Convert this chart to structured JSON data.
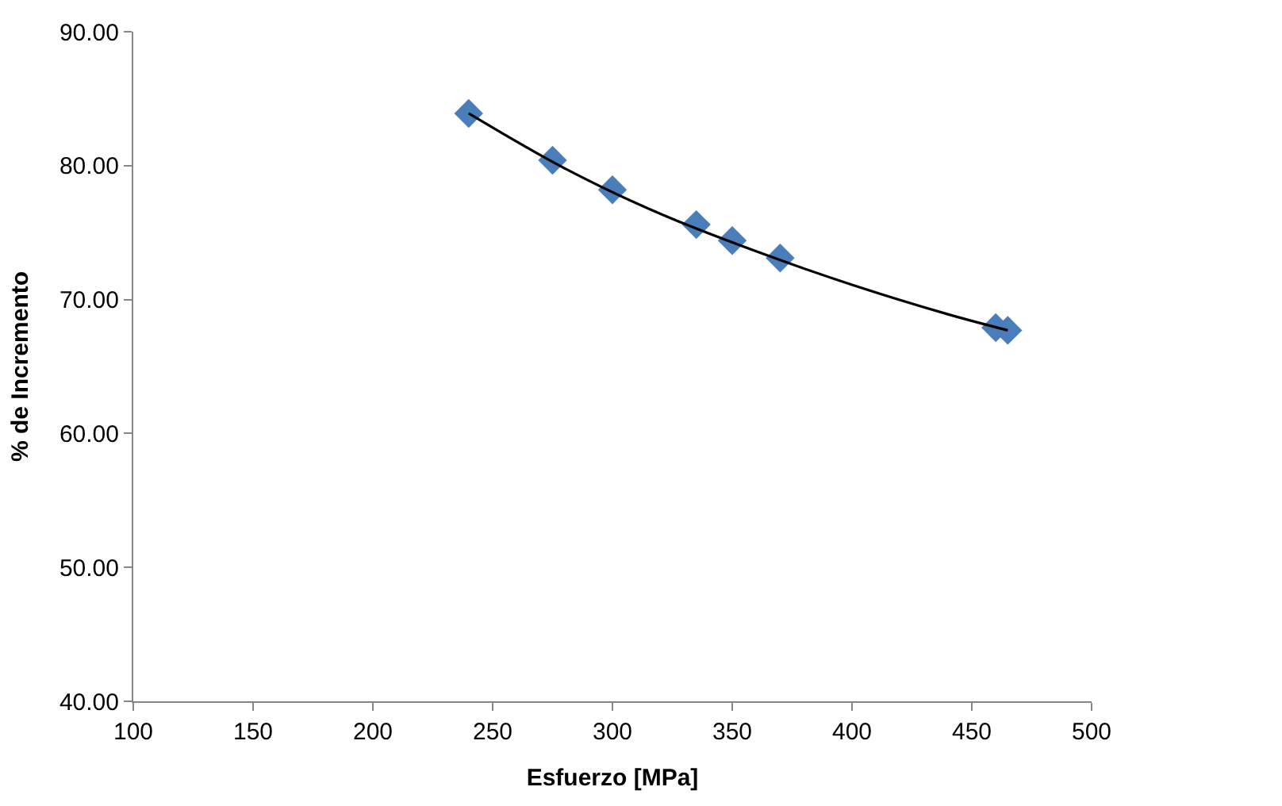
{
  "chart_data": {
    "type": "scatter",
    "xlabel": "Esfuerzo [MPa]",
    "ylabel": "% de Incremento",
    "xlim": [
      100,
      500
    ],
    "xticks": [
      100,
      150,
      200,
      250,
      300,
      350,
      400,
      450,
      500
    ],
    "ylim": [
      40,
      90
    ],
    "yticks": [
      {
        "value": 40,
        "label": "40.00"
      },
      {
        "value": 50,
        "label": "50.00"
      },
      {
        "value": 60,
        "label": "60.00"
      },
      {
        "value": 70,
        "label": "70.00"
      },
      {
        "value": 80,
        "label": "80.00"
      },
      {
        "value": 90,
        "label": "90.00"
      }
    ],
    "series": [
      {
        "color": "#4a7ebb",
        "marker": "diamond",
        "x": [
          240,
          275,
          300,
          335,
          350,
          370,
          460,
          465
        ],
        "values": [
          83.9,
          80.4,
          78.2,
          75.6,
          74.4,
          73.1,
          67.9,
          67.7
        ]
      },
      {
        "type": "line",
        "color": "#000000",
        "marker": "none",
        "line_style": "solid",
        "x": [
          240,
          280,
          320,
          360,
          400,
          440,
          465
        ],
        "values": [
          83.9,
          79.8,
          76.4,
          73.6,
          71.1,
          68.9,
          67.7
        ]
      }
    ]
  }
}
